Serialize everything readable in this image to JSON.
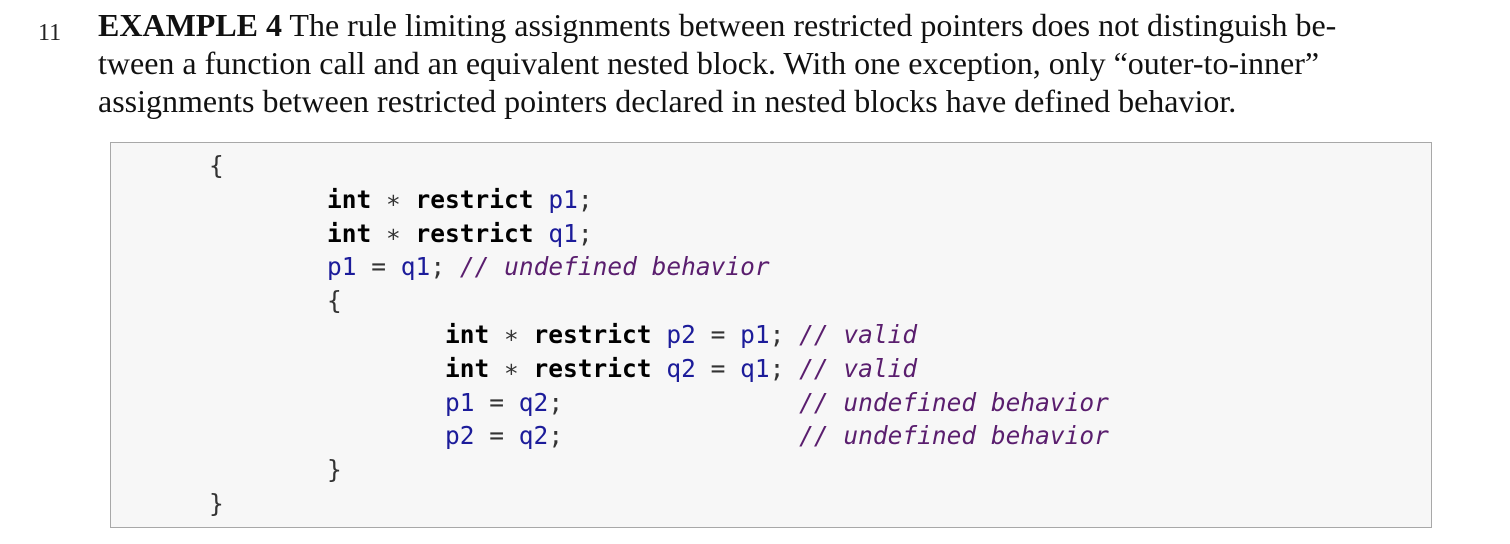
{
  "paragraph": {
    "number": "11",
    "label": "EXAMPLE 4",
    "lines": [
      " The rule limiting assignments between restricted pointers does not distinguish be-",
      "tween a function call and an equivalent nested block. With one exception, only “outer-to-inner”",
      "assignments between restricted pointers declared in nested blocks have defined behavior."
    ]
  },
  "code": {
    "lines": [
      {
        "indent": "",
        "tokens": [
          {
            "t": "op",
            "v": "{"
          }
        ]
      },
      {
        "indent": "        ",
        "tokens": [
          {
            "t": "kw",
            "v": "int"
          },
          {
            "t": "op",
            "v": " ∗ "
          },
          {
            "t": "kw",
            "v": "restrict"
          },
          {
            "t": "op",
            "v": " "
          },
          {
            "t": "id",
            "v": "p1"
          },
          {
            "t": "op",
            "v": ";"
          }
        ]
      },
      {
        "indent": "        ",
        "tokens": [
          {
            "t": "kw",
            "v": "int"
          },
          {
            "t": "op",
            "v": " ∗ "
          },
          {
            "t": "kw",
            "v": "restrict"
          },
          {
            "t": "op",
            "v": " "
          },
          {
            "t": "id",
            "v": "q1"
          },
          {
            "t": "op",
            "v": ";"
          }
        ]
      },
      {
        "indent": "        ",
        "tokens": [
          {
            "t": "id",
            "v": "p1"
          },
          {
            "t": "op",
            "v": " = "
          },
          {
            "t": "id",
            "v": "q1"
          },
          {
            "t": "op",
            "v": "; "
          },
          {
            "t": "cm",
            "v": "// undefined behavior"
          }
        ]
      },
      {
        "indent": "        ",
        "tokens": [
          {
            "t": "op",
            "v": "{"
          }
        ]
      },
      {
        "indent": "                ",
        "tokens": [
          {
            "t": "kw",
            "v": "int"
          },
          {
            "t": "op",
            "v": " ∗ "
          },
          {
            "t": "kw",
            "v": "restrict"
          },
          {
            "t": "op",
            "v": " "
          },
          {
            "t": "id",
            "v": "p2"
          },
          {
            "t": "op",
            "v": " = "
          },
          {
            "t": "id",
            "v": "p1"
          },
          {
            "t": "op",
            "v": "; "
          },
          {
            "t": "cm",
            "v": "// valid"
          }
        ]
      },
      {
        "indent": "                ",
        "tokens": [
          {
            "t": "kw",
            "v": "int"
          },
          {
            "t": "op",
            "v": " ∗ "
          },
          {
            "t": "kw",
            "v": "restrict"
          },
          {
            "t": "op",
            "v": " "
          },
          {
            "t": "id",
            "v": "q2"
          },
          {
            "t": "op",
            "v": " = "
          },
          {
            "t": "id",
            "v": "q1"
          },
          {
            "t": "op",
            "v": "; "
          },
          {
            "t": "cm",
            "v": "// valid"
          }
        ]
      },
      {
        "indent": "                ",
        "tokens": [
          {
            "t": "id",
            "v": "p1"
          },
          {
            "t": "op",
            "v": " = "
          },
          {
            "t": "id",
            "v": "q2"
          },
          {
            "t": "op",
            "v": ";                "
          },
          {
            "t": "cm",
            "v": "// undefined behavior"
          }
        ]
      },
      {
        "indent": "                ",
        "tokens": [
          {
            "t": "id",
            "v": "p2"
          },
          {
            "t": "op",
            "v": " = "
          },
          {
            "t": "id",
            "v": "q2"
          },
          {
            "t": "op",
            "v": ";                "
          },
          {
            "t": "cm",
            "v": "// undefined behavior"
          }
        ]
      },
      {
        "indent": "        ",
        "tokens": [
          {
            "t": "op",
            "v": "}"
          }
        ]
      },
      {
        "indent": "",
        "tokens": [
          {
            "t": "op",
            "v": "}"
          }
        ]
      }
    ]
  }
}
